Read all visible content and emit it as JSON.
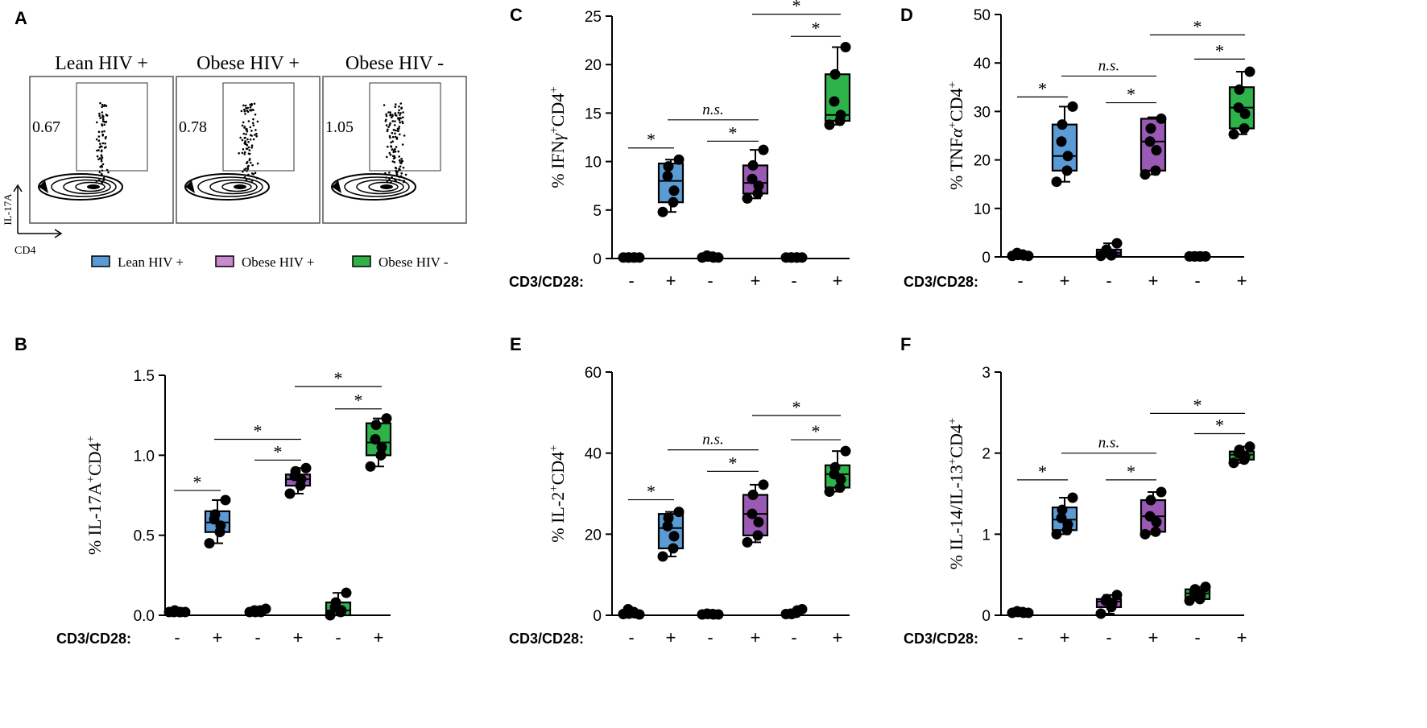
{
  "panelA": {
    "letter": "A",
    "subpanels": [
      {
        "label": "Lean HIV +",
        "gate_value": "0.67"
      },
      {
        "label": "Obese HIV +",
        "gate_value": "0.78"
      },
      {
        "label": "Obese HIV -",
        "gate_value": "1.05"
      }
    ],
    "y_axis_label": "IL-17A",
    "x_axis_label": "CD4",
    "legend": [
      {
        "label": "Lean HIV +",
        "color": "#5b9bd5"
      },
      {
        "label": "Obese HIV +",
        "color": "#cc88cc"
      },
      {
        "label": "Obese HIV -",
        "color": "#2eb34b"
      }
    ]
  },
  "group_colors": [
    "#5b9bd5",
    "#9b59b6",
    "#2eb34b"
  ],
  "stim_row": {
    "label": "CD3/CD28:",
    "values": [
      "-",
      "+",
      "-",
      "+",
      "-",
      "+"
    ]
  },
  "chart_data": [
    {
      "id": "B",
      "letter": "B",
      "type": "box",
      "ylabel_main": "% IL-17A",
      "ylabel_sup1": "+",
      "ylabel_mid": "CD4",
      "ylabel_sup2": "+",
      "ylim": [
        0,
        1.5
      ],
      "ticks": [
        0.0,
        0.5,
        1.0,
        1.5
      ],
      "tick_labels": [
        "0.0",
        "0.5",
        "1.0",
        "1.5"
      ],
      "groups": [
        {
          "stim": "-",
          "box": null,
          "points": [
            0.02,
            0.02,
            0.02,
            0.02,
            0.03,
            0.02
          ]
        },
        {
          "stim": "+",
          "box": {
            "min": 0.45,
            "q1": 0.52,
            "median": 0.58,
            "q3": 0.65,
            "max": 0.72
          },
          "points": [
            0.45,
            0.52,
            0.56,
            0.6,
            0.63,
            0.72
          ]
        },
        {
          "stim": "-",
          "box": null,
          "points": [
            0.02,
            0.03,
            0.02,
            0.03,
            0.02,
            0.04
          ]
        },
        {
          "stim": "+",
          "box": {
            "min": 0.76,
            "q1": 0.81,
            "median": 0.85,
            "q3": 0.88,
            "max": 0.92
          },
          "points": [
            0.76,
            0.81,
            0.85,
            0.87,
            0.9,
            0.92
          ]
        },
        {
          "stim": "-",
          "box": {
            "min": 0.0,
            "q1": 0.0,
            "median": 0.03,
            "q3": 0.08,
            "max": 0.14
          },
          "points": [
            0.0,
            0.02,
            0.03,
            0.05,
            0.08,
            0.14
          ]
        },
        {
          "stim": "+",
          "box": {
            "min": 0.93,
            "q1": 1.0,
            "median": 1.08,
            "q3": 1.2,
            "max": 1.23
          },
          "points": [
            0.93,
            1.0,
            1.05,
            1.1,
            1.19,
            1.23
          ]
        }
      ],
      "annotations": [
        {
          "from": 0,
          "to": 1,
          "y": 0.78,
          "text": "*"
        },
        {
          "from": 1,
          "to": 3,
          "y": 1.1,
          "text": "*"
        },
        {
          "from": 2,
          "to": 3,
          "y": 0.97,
          "text": "*"
        },
        {
          "from": 3,
          "to": 5,
          "y": 1.43,
          "text": "*"
        },
        {
          "from": 4,
          "to": 5,
          "y": 1.29,
          "text": "*"
        }
      ]
    },
    {
      "id": "C",
      "letter": "C",
      "type": "box",
      "ylabel_main": "% IFN",
      "ylabel_greek": "γ",
      "ylabel_sup1": "+",
      "ylabel_mid": "CD4",
      "ylabel_sup2": "+",
      "ylim": [
        0,
        25
      ],
      "ticks": [
        0,
        5,
        10,
        15,
        20,
        25
      ],
      "tick_labels": [
        "0",
        "5",
        "10",
        "15",
        "20",
        "25"
      ],
      "groups": [
        {
          "stim": "-",
          "box": null,
          "points": [
            0.1,
            0.1,
            0.1,
            0.1,
            0.1,
            0.1
          ]
        },
        {
          "stim": "+",
          "box": {
            "min": 4.8,
            "q1": 5.8,
            "median": 8.0,
            "q3": 9.8,
            "max": 10.2
          },
          "points": [
            4.8,
            5.8,
            7.0,
            8.5,
            9.5,
            10.2
          ]
        },
        {
          "stim": "-",
          "box": null,
          "points": [
            0.1,
            0.2,
            0.1,
            0.3,
            0.2,
            0.1
          ]
        },
        {
          "stim": "+",
          "box": {
            "min": 6.2,
            "q1": 6.7,
            "median": 7.8,
            "q3": 9.6,
            "max": 11.2
          },
          "points": [
            6.2,
            6.7,
            7.5,
            8.2,
            9.6,
            11.2
          ]
        },
        {
          "stim": "-",
          "box": null,
          "points": [
            0.1,
            0.1,
            0.1,
            0.1,
            0.1,
            0.1
          ]
        },
        {
          "stim": "+",
          "box": {
            "min": 13.8,
            "q1": 14.2,
            "median": 14.8,
            "q3": 19.0,
            "max": 21.8
          },
          "points": [
            13.8,
            14.2,
            14.8,
            16.2,
            19.0,
            21.8
          ]
        }
      ],
      "annotations": [
        {
          "from": 0,
          "to": 1,
          "y": 11.4,
          "text": "*"
        },
        {
          "from": 1,
          "to": 3,
          "y": 14.3,
          "text": "n.s."
        },
        {
          "from": 2,
          "to": 3,
          "y": 12.1,
          "text": "*"
        },
        {
          "from": 3,
          "to": 5,
          "y": 25.2,
          "text": "*"
        },
        {
          "from": 4,
          "to": 5,
          "y": 22.9,
          "text": "*"
        }
      ]
    },
    {
      "id": "D",
      "letter": "D",
      "type": "box",
      "ylabel_main": "% TNF",
      "ylabel_greek": "α",
      "ylabel_sup1": "+",
      "ylabel_mid": "CD4",
      "ylabel_sup2": "+",
      "ylim": [
        0,
        50
      ],
      "ticks": [
        0,
        10,
        20,
        30,
        40,
        50
      ],
      "tick_labels": [
        "0",
        "10",
        "20",
        "30",
        "40",
        "50"
      ],
      "groups": [
        {
          "stim": "-",
          "box": null,
          "points": [
            0.2,
            0.5,
            0.3,
            0.8,
            0.4,
            0.2
          ]
        },
        {
          "stim": "+",
          "box": {
            "min": 15.5,
            "q1": 17.8,
            "median": 20.8,
            "q3": 27.3,
            "max": 31.0
          },
          "points": [
            15.5,
            17.8,
            20.8,
            23.8,
            27.3,
            31.0
          ]
        },
        {
          "stim": "-",
          "box": {
            "min": 0.2,
            "q1": 0.3,
            "median": 0.8,
            "q3": 1.5,
            "max": 2.8
          },
          "points": [
            0.2,
            0.3,
            0.6,
            1.0,
            1.5,
            2.8
          ]
        },
        {
          "stim": "+",
          "box": {
            "min": 17.0,
            "q1": 17.8,
            "median": 23.8,
            "q3": 28.5,
            "max": 28.8
          },
          "points": [
            17.0,
            17.8,
            22.0,
            23.8,
            26.5,
            28.5
          ]
        },
        {
          "stim": "-",
          "box": null,
          "points": [
            0.1,
            0.1,
            0.1,
            0.1,
            0.1,
            0.1
          ]
        },
        {
          "stim": "+",
          "box": {
            "min": 25.3,
            "q1": 26.5,
            "median": 30.8,
            "q3": 35.0,
            "max": 38.2
          },
          "points": [
            25.3,
            26.5,
            29.5,
            30.8,
            34.5,
            38.2
          ]
        }
      ],
      "annotations": [
        {
          "from": 0,
          "to": 1,
          "y": 33.0,
          "text": "*"
        },
        {
          "from": 1,
          "to": 3,
          "y": 37.3,
          "text": "n.s."
        },
        {
          "from": 2,
          "to": 3,
          "y": 31.8,
          "text": "*"
        },
        {
          "from": 3,
          "to": 5,
          "y": 45.8,
          "text": "*"
        },
        {
          "from": 4,
          "to": 5,
          "y": 40.8,
          "text": "*"
        }
      ]
    },
    {
      "id": "E",
      "letter": "E",
      "type": "box",
      "ylabel_main": "% IL-2",
      "ylabel_sup1": "+",
      "ylabel_mid": "CD4",
      "ylabel_sup2": "+",
      "ylim": [
        0,
        60
      ],
      "ticks": [
        0,
        20,
        40,
        60
      ],
      "tick_labels": [
        "0",
        "20",
        "40",
        "60"
      ],
      "groups": [
        {
          "stim": "-",
          "box": null,
          "points": [
            0.3,
            0.8,
            0.5,
            1.5,
            0.4,
            0.2
          ]
        },
        {
          "stim": "+",
          "box": {
            "min": 14.5,
            "q1": 16.5,
            "median": 21.5,
            "q3": 25.0,
            "max": 25.5
          },
          "points": [
            14.5,
            16.5,
            19.5,
            22.0,
            24.0,
            25.5
          ]
        },
        {
          "stim": "-",
          "box": null,
          "points": [
            0.2,
            0.3,
            0.2,
            0.4,
            0.3,
            0.2
          ]
        },
        {
          "stim": "+",
          "box": {
            "min": 18.0,
            "q1": 19.7,
            "median": 25.0,
            "q3": 29.7,
            "max": 32.2
          },
          "points": [
            18.0,
            19.7,
            23.0,
            25.0,
            29.7,
            32.2
          ]
        },
        {
          "stim": "-",
          "box": null,
          "points": [
            0.3,
            0.6,
            1.2,
            0.4,
            0.3,
            1.5
          ]
        },
        {
          "stim": "+",
          "box": {
            "min": 30.5,
            "q1": 31.5,
            "median": 34.8,
            "q3": 37.0,
            "max": 40.5
          },
          "points": [
            30.5,
            31.5,
            33.5,
            34.8,
            36.5,
            40.5
          ]
        }
      ],
      "annotations": [
        {
          "from": 0,
          "to": 1,
          "y": 28.5,
          "text": "*"
        },
        {
          "from": 1,
          "to": 3,
          "y": 40.8,
          "text": "n.s."
        },
        {
          "from": 2,
          "to": 3,
          "y": 35.5,
          "text": "*"
        },
        {
          "from": 3,
          "to": 5,
          "y": 49.3,
          "text": "*"
        },
        {
          "from": 4,
          "to": 5,
          "y": 43.3,
          "text": "*"
        }
      ]
    },
    {
      "id": "F",
      "letter": "F",
      "type": "box",
      "ylabel_main": "% IL-14/IL-13",
      "ylabel_sup1": "+",
      "ylabel_mid": "CD4",
      "ylabel_sup2": "+",
      "ylim": [
        0,
        3
      ],
      "ticks": [
        0,
        1,
        2,
        3
      ],
      "tick_labels": [
        "0",
        "1",
        "2",
        "3"
      ],
      "groups": [
        {
          "stim": "-",
          "box": null,
          "points": [
            0.03,
            0.04,
            0.03,
            0.05,
            0.04,
            0.03
          ]
        },
        {
          "stim": "+",
          "box": {
            "min": 1.0,
            "q1": 1.05,
            "median": 1.18,
            "q3": 1.33,
            "max": 1.45
          },
          "points": [
            1.0,
            1.05,
            1.12,
            1.2,
            1.3,
            1.45
          ]
        },
        {
          "stim": "-",
          "box": {
            "min": 0.02,
            "q1": 0.1,
            "median": 0.17,
            "q3": 0.2,
            "max": 0.25
          },
          "points": [
            0.02,
            0.1,
            0.15,
            0.18,
            0.2,
            0.25
          ]
        },
        {
          "stim": "+",
          "box": {
            "min": 1.0,
            "q1": 1.03,
            "median": 1.22,
            "q3": 1.42,
            "max": 1.52
          },
          "points": [
            1.0,
            1.03,
            1.15,
            1.22,
            1.42,
            1.52
          ]
        },
        {
          "stim": "-",
          "box": {
            "min": 0.18,
            "q1": 0.2,
            "median": 0.27,
            "q3": 0.32,
            "max": 0.35
          },
          "points": [
            0.18,
            0.2,
            0.25,
            0.28,
            0.32,
            0.35
          ]
        },
        {
          "stim": "+",
          "box": {
            "min": 1.88,
            "q1": 1.92,
            "median": 1.98,
            "q3": 2.02,
            "max": 2.08
          },
          "points": [
            1.88,
            1.92,
            1.96,
            2.0,
            2.04,
            2.08
          ]
        }
      ],
      "annotations": [
        {
          "from": 0,
          "to": 1,
          "y": 1.67,
          "text": "*"
        },
        {
          "from": 1,
          "to": 3,
          "y": 2.0,
          "text": "n.s."
        },
        {
          "from": 2,
          "to": 3,
          "y": 1.67,
          "text": "*"
        },
        {
          "from": 3,
          "to": 5,
          "y": 2.49,
          "text": "*"
        },
        {
          "from": 4,
          "to": 5,
          "y": 2.24,
          "text": "*"
        }
      ]
    }
  ]
}
